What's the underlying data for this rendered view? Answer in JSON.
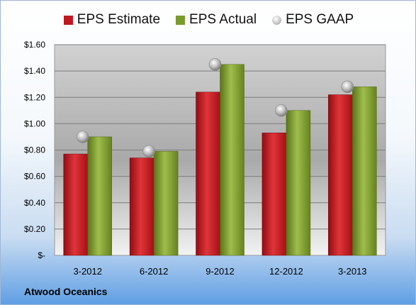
{
  "chart_data": {
    "type": "bar",
    "categories": [
      "3-2012",
      "6-2012",
      "9-2012",
      "12-2012",
      "3-2013"
    ],
    "series": [
      {
        "name": "EPS Estimate",
        "values": [
          0.77,
          0.74,
          1.24,
          0.93,
          1.22
        ],
        "color": "#c0181f",
        "kind": "bar"
      },
      {
        "name": "EPS Actual",
        "values": [
          0.9,
          0.79,
          1.45,
          1.1,
          1.28
        ],
        "color": "#7a9a2c",
        "kind": "bar"
      },
      {
        "name": "EPS GAAP",
        "values": [
          0.9,
          0.79,
          1.45,
          1.1,
          1.28
        ],
        "color": "#a8a8a8",
        "kind": "marker"
      }
    ],
    "ylim": [
      0,
      1.6
    ],
    "yticks": [
      0,
      0.2,
      0.4,
      0.6,
      0.8,
      1.0,
      1.2,
      1.4,
      1.6
    ],
    "ytick_labels": [
      "$-",
      "$0.20",
      "$0.40",
      "$0.60",
      "$0.80",
      "$1.00",
      "$1.20",
      "$1.40",
      "$1.60"
    ],
    "grid": true,
    "legend_position": "top"
  },
  "company": "Atwood Oceanics"
}
